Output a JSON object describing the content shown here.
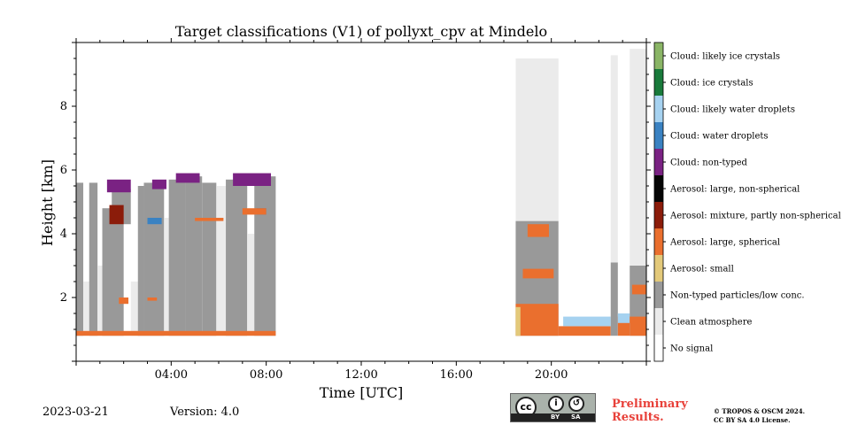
{
  "chart_data": {
    "type": "heatmap",
    "title": "Target classifications (V1) of pollyxt_cpv at Mindelo",
    "xlabel": "Time [UTC]",
    "ylabel": "Height [km]",
    "xlim": [
      0,
      24
    ],
    "ylim": [
      0,
      10
    ],
    "xticks": [
      {
        "value": 4,
        "label": "04:00"
      },
      {
        "value": 8,
        "label": "08:00"
      },
      {
        "value": 12,
        "label": "12:00"
      },
      {
        "value": 16,
        "label": "16:00"
      },
      {
        "value": 20,
        "label": "20:00"
      }
    ],
    "yticks": [
      {
        "value": 2,
        "label": "2"
      },
      {
        "value": 4,
        "label": "4"
      },
      {
        "value": 6,
        "label": "6"
      },
      {
        "value": 8,
        "label": "8"
      }
    ],
    "classes": [
      {
        "label": "No signal",
        "color": "#ffffff"
      },
      {
        "label": "Clean atmosphere",
        "color": "#ebebeb"
      },
      {
        "label": "Non-typed particles/low conc.",
        "color": "#999999"
      },
      {
        "label": "Aerosol: small",
        "color": "#e3c97a"
      },
      {
        "label": "Aerosol: large, spherical",
        "color": "#ea6f2e"
      },
      {
        "label": "Aerosol: mixture, partly non-spherical",
        "color": "#8b1c0a"
      },
      {
        "label": "Aerosol: large, non-spherical",
        "color": "#050505"
      },
      {
        "label": "Cloud: non-typed",
        "color": "#7a2283"
      },
      {
        "label": "Cloud: water droplets",
        "color": "#3a82c2"
      },
      {
        "label": "Cloud: likely water droplets",
        "color": "#a6d2f0"
      },
      {
        "label": "Cloud: ice crystals",
        "color": "#197a3b"
      },
      {
        "label": "Cloud: likely ice crystals",
        "color": "#8ab566"
      }
    ],
    "segments": [
      {
        "t0": 0.0,
        "t1": 0.3,
        "h0": 0.8,
        "h1": 5.6,
        "cls": 2
      },
      {
        "t0": 0.3,
        "t1": 0.55,
        "h0": 0.8,
        "h1": 2.5,
        "cls": 1
      },
      {
        "t0": 0.55,
        "t1": 0.9,
        "h0": 0.8,
        "h1": 5.6,
        "cls": 2
      },
      {
        "t0": 0.9,
        "t1": 1.1,
        "h0": 0.8,
        "h1": 3.0,
        "cls": 1
      },
      {
        "t0": 1.1,
        "t1": 2.0,
        "h0": 0.8,
        "h1": 4.8,
        "cls": 2
      },
      {
        "t0": 1.5,
        "t1": 2.3,
        "h0": 4.3,
        "h1": 5.4,
        "cls": 2
      },
      {
        "t0": 2.3,
        "t1": 2.6,
        "h0": 0.8,
        "h1": 2.5,
        "cls": 1
      },
      {
        "t0": 2.6,
        "t1": 2.85,
        "h0": 0.8,
        "h1": 5.5,
        "cls": 2
      },
      {
        "t0": 2.85,
        "t1": 3.7,
        "h0": 0.8,
        "h1": 5.6,
        "cls": 2
      },
      {
        "t0": 3.7,
        "t1": 3.9,
        "h0": 0.8,
        "h1": 4.5,
        "cls": 1
      },
      {
        "t0": 3.9,
        "t1": 4.6,
        "h0": 0.8,
        "h1": 5.7,
        "cls": 2
      },
      {
        "t0": 4.6,
        "t1": 5.3,
        "h0": 0.8,
        "h1": 5.8,
        "cls": 2
      },
      {
        "t0": 5.3,
        "t1": 5.9,
        "h0": 0.8,
        "h1": 5.6,
        "cls": 2
      },
      {
        "t0": 5.9,
        "t1": 6.3,
        "h0": 0.8,
        "h1": 5.5,
        "cls": 1
      },
      {
        "t0": 6.3,
        "t1": 7.2,
        "h0": 0.8,
        "h1": 5.7,
        "cls": 2
      },
      {
        "t0": 7.2,
        "t1": 7.5,
        "h0": 0.8,
        "h1": 4.0,
        "cls": 1
      },
      {
        "t0": 7.5,
        "t1": 8.4,
        "h0": 0.8,
        "h1": 5.8,
        "cls": 2
      },
      {
        "t0": 0.0,
        "t1": 8.4,
        "h0": 0.8,
        "h1": 0.95,
        "cls": 4
      },
      {
        "t0": 1.4,
        "t1": 2.0,
        "h0": 4.3,
        "h1": 4.9,
        "cls": 5
      },
      {
        "t0": 1.3,
        "t1": 2.3,
        "h0": 5.3,
        "h1": 5.7,
        "cls": 7
      },
      {
        "t0": 3.2,
        "t1": 3.8,
        "h0": 5.4,
        "h1": 5.7,
        "cls": 7
      },
      {
        "t0": 4.2,
        "t1": 5.2,
        "h0": 5.6,
        "h1": 5.9,
        "cls": 7
      },
      {
        "t0": 6.6,
        "t1": 8.2,
        "h0": 5.5,
        "h1": 5.9,
        "cls": 7
      },
      {
        "t0": 3.0,
        "t1": 3.6,
        "h0": 4.3,
        "h1": 4.5,
        "cls": 8
      },
      {
        "t0": 7.6,
        "t1": 8.0,
        "h0": 4.6,
        "h1": 4.8,
        "cls": 8
      },
      {
        "t0": 1.8,
        "t1": 2.2,
        "h0": 1.8,
        "h1": 2.0,
        "cls": 4
      },
      {
        "t0": 3.0,
        "t1": 3.4,
        "h0": 1.9,
        "h1": 2.0,
        "cls": 4
      },
      {
        "t0": 5.0,
        "t1": 6.2,
        "h0": 4.4,
        "h1": 4.5,
        "cls": 4
      },
      {
        "t0": 7.0,
        "t1": 8.0,
        "h0": 4.6,
        "h1": 4.8,
        "cls": 4
      },
      {
        "t0": 18.5,
        "t1": 20.3,
        "h0": 0.8,
        "h1": 4.4,
        "cls": 2
      },
      {
        "t0": 18.5,
        "t1": 20.3,
        "h0": 4.4,
        "h1": 9.5,
        "cls": 1
      },
      {
        "t0": 18.5,
        "t1": 20.3,
        "h0": 0.8,
        "h1": 1.8,
        "cls": 4
      },
      {
        "t0": 18.5,
        "t1": 18.7,
        "h0": 0.8,
        "h1": 1.7,
        "cls": 3
      },
      {
        "t0": 18.8,
        "t1": 20.1,
        "h0": 2.6,
        "h1": 2.9,
        "cls": 4
      },
      {
        "t0": 19.0,
        "t1": 19.9,
        "h0": 3.9,
        "h1": 4.3,
        "cls": 4
      },
      {
        "t0": 20.3,
        "t1": 22.5,
        "h0": 0.8,
        "h1": 1.1,
        "cls": 4
      },
      {
        "t0": 20.5,
        "t1": 22.5,
        "h0": 1.1,
        "h1": 1.4,
        "cls": 9
      },
      {
        "t0": 22.5,
        "t1": 22.8,
        "h0": 0.8,
        "h1": 3.1,
        "cls": 2
      },
      {
        "t0": 22.5,
        "t1": 22.8,
        "h0": 3.1,
        "h1": 9.6,
        "cls": 1
      },
      {
        "t0": 22.8,
        "t1": 23.3,
        "h0": 0.8,
        "h1": 1.4,
        "cls": 4
      },
      {
        "t0": 22.8,
        "t1": 23.3,
        "h0": 1.2,
        "h1": 1.5,
        "cls": 9
      },
      {
        "t0": 23.3,
        "t1": 24.0,
        "h0": 0.8,
        "h1": 3.0,
        "cls": 2
      },
      {
        "t0": 23.3,
        "t1": 24.0,
        "h0": 3.0,
        "h1": 9.8,
        "cls": 1
      },
      {
        "t0": 23.3,
        "t1": 24.0,
        "h0": 0.8,
        "h1": 1.4,
        "cls": 4
      },
      {
        "t0": 23.4,
        "t1": 24.0,
        "h0": 2.1,
        "h1": 2.4,
        "cls": 4
      }
    ]
  },
  "footer": {
    "date": "2023-03-21",
    "version": "Version: 4.0",
    "license_badge": {
      "cc": "cc",
      "by": "BY",
      "sa": "SA"
    },
    "preliminary": "Preliminary Results.",
    "copyright_line1": "© TROPOS & OSCM 2024.",
    "copyright_line2": "CC BY SA 4.0 License."
  }
}
